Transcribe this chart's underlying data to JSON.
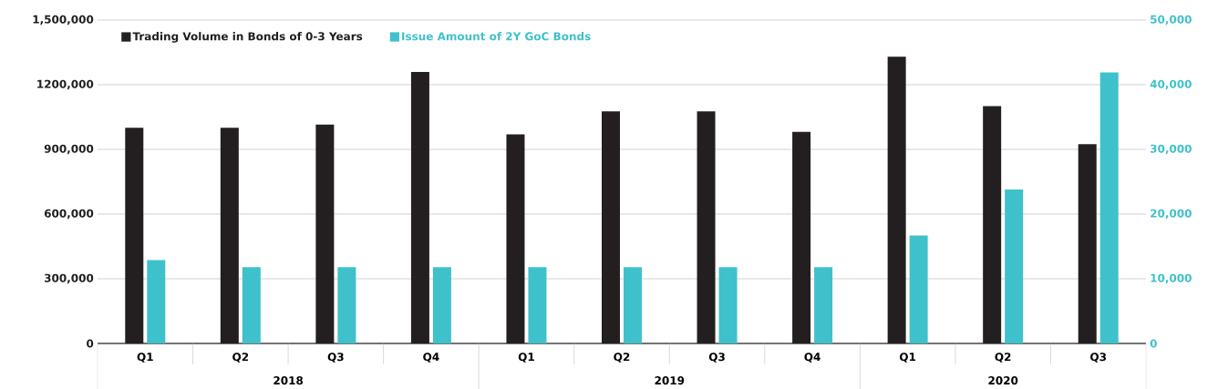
{
  "chart_data": {
    "type": "bar",
    "categories": [
      "Q1",
      "Q2",
      "Q3",
      "Q4",
      "Q1",
      "Q2",
      "Q3",
      "Q4",
      "Q1",
      "Q2",
      "Q3"
    ],
    "series": [
      {
        "name": "Trading Volume in Bonds of 0-3 Years",
        "color": "#231f20",
        "values": [
          1000000,
          1000000,
          1015000,
          1259000,
          970000,
          1076000,
          1076000,
          981000,
          1330000,
          1101000,
          924000
        ]
      },
      {
        "name": "Issue Amount of 2Y GoC Bonds",
        "color": "#3fc1cb",
        "axis": "y2",
        "values": [
          12900,
          11800,
          11800,
          11800,
          11800,
          11800,
          11800,
          11800,
          16700,
          23800,
          41900
        ]
      }
    ],
    "ylim": [
      0,
      1500000
    ],
    "yticks": [
      0,
      {
        "value": 300000,
        "label": "300,000"
      },
      {
        "value": 600000,
        "label": "600,000"
      },
      {
        "value": 900000,
        "label": "900,000"
      },
      {
        "value": 1200000,
        "label": "1200,000"
      },
      {
        "value": 1500000,
        "label": "1,500,000"
      }
    ],
    "y2lim": [
      0,
      50000
    ],
    "y2ticks": [
      0,
      {
        "value": 10000,
        "label": "10,000"
      },
      {
        "value": 20000,
        "label": "20,000"
      },
      {
        "value": 30000,
        "label": "30,000"
      },
      {
        "value": 40000,
        "label": "40,000"
      },
      {
        "value": 50000,
        "label": "50,000"
      }
    ],
    "grid": "y",
    "legend": "top left",
    "annotations": [
      "2018",
      "2019",
      "2020"
    ]
  }
}
